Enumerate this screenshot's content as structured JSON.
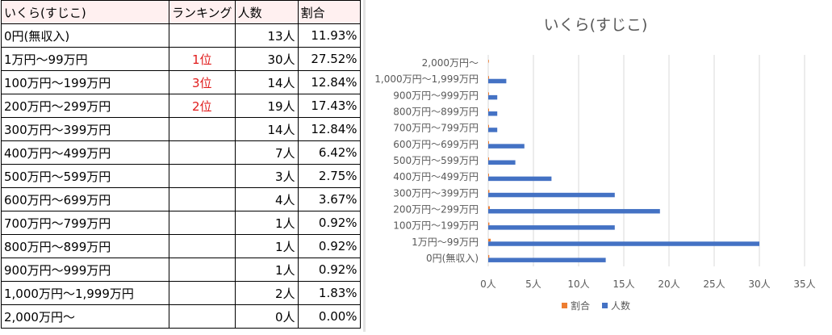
{
  "table": {
    "headers": [
      "いくら(すじこ)",
      "ランキング",
      "人数",
      "割合"
    ],
    "rows": [
      {
        "label": "0円(無収入)",
        "rank": "",
        "count": "13人",
        "pct": "11.93%"
      },
      {
        "label": "1万円〜99万円",
        "rank": "1位",
        "count": "30人",
        "pct": "27.52%"
      },
      {
        "label": "100万円〜199万円",
        "rank": "3位",
        "count": "14人",
        "pct": "12.84%"
      },
      {
        "label": "200万円〜299万円",
        "rank": "2位",
        "count": "19人",
        "pct": "17.43%"
      },
      {
        "label": "300万円〜399万円",
        "rank": "",
        "count": "14人",
        "pct": "12.84%"
      },
      {
        "label": "400万円〜499万円",
        "rank": "",
        "count": "7人",
        "pct": "6.42%"
      },
      {
        "label": "500万円〜599万円",
        "rank": "",
        "count": "3人",
        "pct": "2.75%"
      },
      {
        "label": "600万円〜699万円",
        "rank": "",
        "count": "4人",
        "pct": "3.67%"
      },
      {
        "label": "700万円〜799万円",
        "rank": "",
        "count": "1人",
        "pct": "0.92%"
      },
      {
        "label": "800万円〜899万円",
        "rank": "",
        "count": "1人",
        "pct": "0.92%"
      },
      {
        "label": "900万円〜999万円",
        "rank": "",
        "count": "1人",
        "pct": "0.92%"
      },
      {
        "label": "1,000万円〜1,999万円",
        "rank": "",
        "count": "2人",
        "pct": "1.83%"
      },
      {
        "label": "2,000万円〜",
        "rank": "",
        "count": "0人",
        "pct": "0.00%"
      }
    ]
  },
  "chart_data": {
    "type": "bar",
    "orientation": "horizontal",
    "title": "いくら(すじこ)",
    "categories": [
      "0円(無収入)",
      "1万円〜99万円",
      "100万円〜199万円",
      "200万円〜299万円",
      "300万円〜399万円",
      "400万円〜499万円",
      "500万円〜599万円",
      "600万円〜699万円",
      "700万円〜799万円",
      "800万円〜899万円",
      "900万円〜999万円",
      "1,000万円〜1,999万円",
      "2,000万円〜"
    ],
    "series": [
      {
        "name": "割合",
        "color": "#ed7d31",
        "values": [
          0.1193,
          0.2752,
          0.1284,
          0.1743,
          0.1284,
          0.0642,
          0.0275,
          0.0367,
          0.0092,
          0.0092,
          0.0092,
          0.0183,
          0.0
        ]
      },
      {
        "name": "人数",
        "color": "#4472c4",
        "values": [
          13,
          30,
          14,
          19,
          14,
          7,
          3,
          4,
          1,
          1,
          1,
          2,
          0
        ]
      }
    ],
    "xlim": [
      0,
      35
    ],
    "xticks": [
      0,
      5,
      10,
      15,
      20,
      25,
      30,
      35
    ],
    "xtick_labels": [
      "0人",
      "5人",
      "10人",
      "15人",
      "20人",
      "25人",
      "30人",
      "35人"
    ],
    "grid": true,
    "legend_position": "bottom"
  }
}
